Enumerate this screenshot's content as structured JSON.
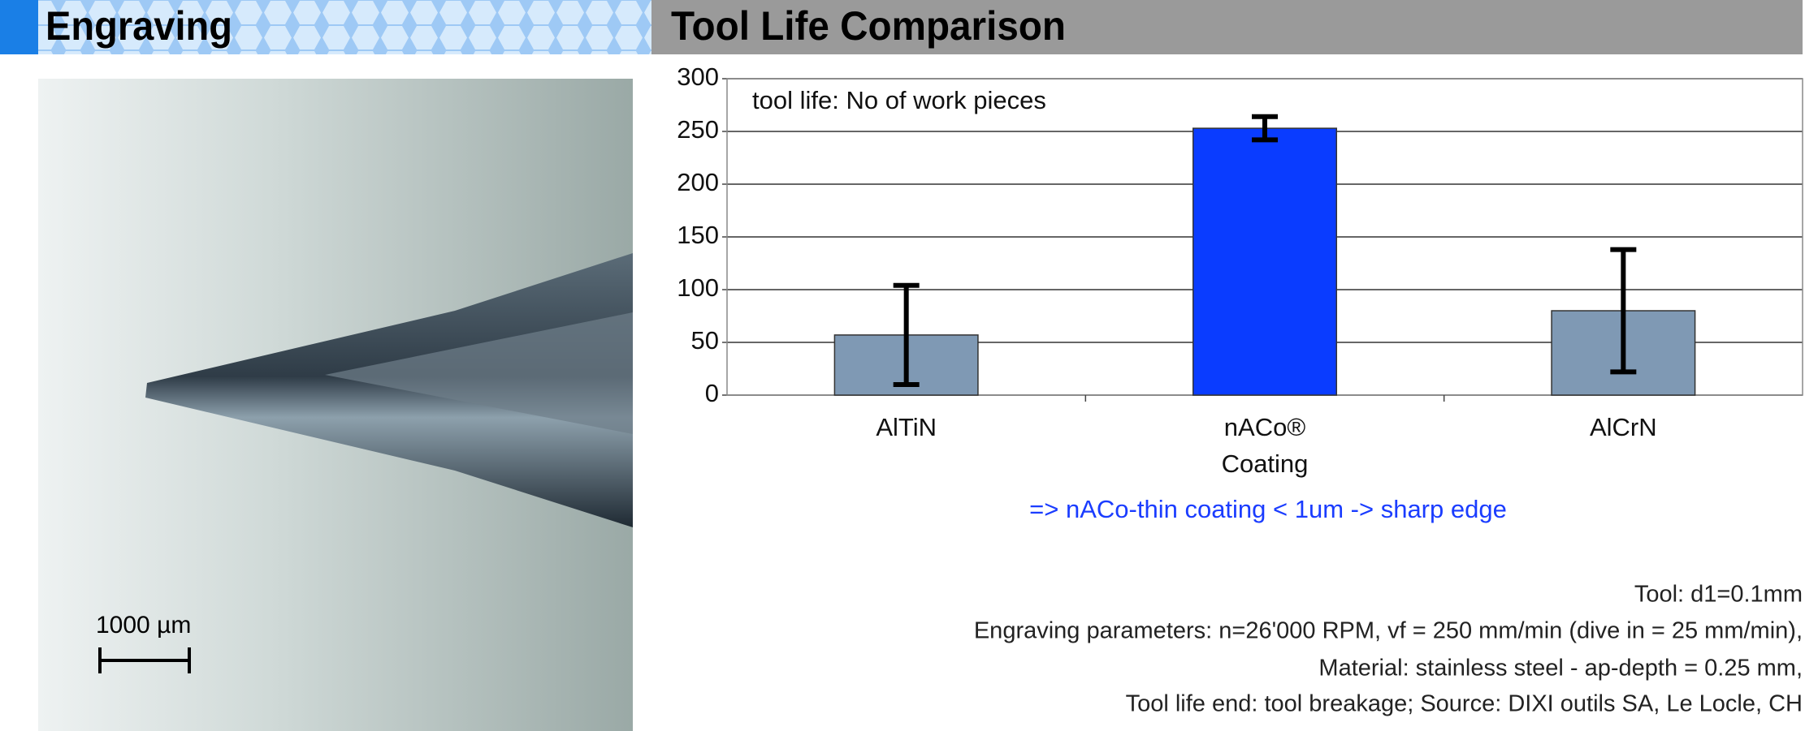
{
  "header": {
    "left": "Engraving"
  },
  "photo": {
    "scale_label": "1000 µm"
  },
  "chart_data": {
    "type": "bar",
    "title": "Tool Life Comparison",
    "annotation": "tool life: No of work pieces",
    "categories": [
      "AlTiN",
      "nACo®\nCoating",
      "AlCrN"
    ],
    "values": [
      57,
      253,
      80
    ],
    "errors": [
      47,
      11,
      58
    ],
    "colors": [
      "#7f99b4",
      "#0a3cff",
      "#7f99b4"
    ],
    "ylim": [
      0,
      300
    ],
    "yticks": [
      0,
      50,
      100,
      150,
      200,
      250,
      300
    ],
    "grid": true,
    "note": "=> nACo-thin coating < 1um  -> sharp edge"
  },
  "footnotes": [
    "Tool:  d1=0.1mm",
    "Engraving parameters:  n=26'000 RPM, vf = 250 mm/min (dive in = 25 mm/min),",
    "Material: stainless steel - ap-depth = 0.25 mm,",
    "Tool life end: tool breakage; Source: DIXI outils SA, Le Locle, CH"
  ]
}
